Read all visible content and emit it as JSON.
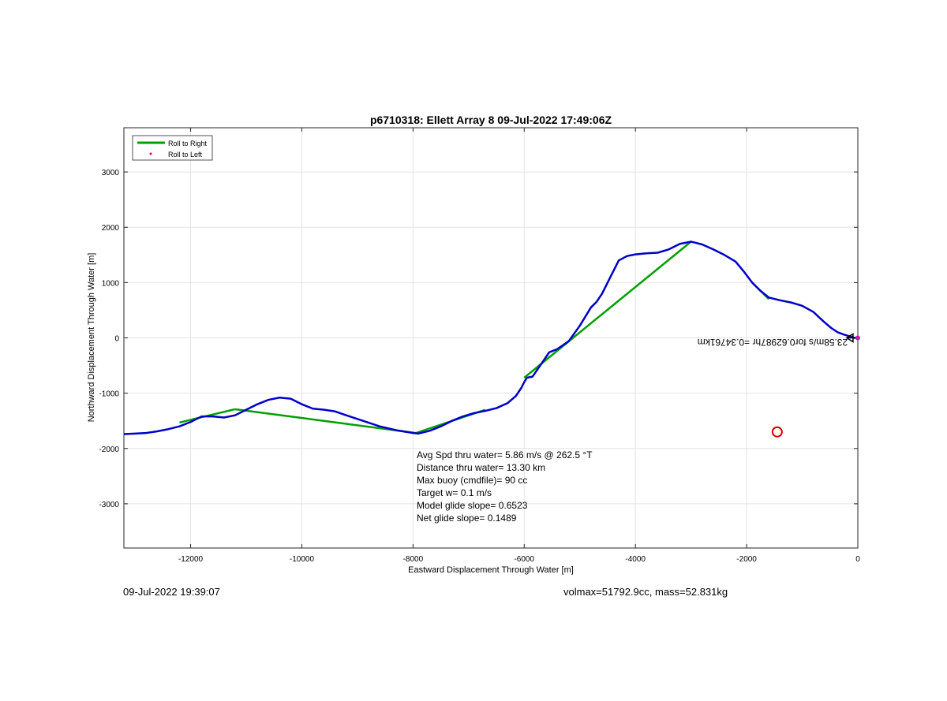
{
  "chart_data": {
    "type": "line",
    "title": "p6710318: Ellett Array 8 09-Jul-2022 17:49:06Z",
    "xlabel": "Eastward Displacement Through Water [m]",
    "ylabel": "Northward Displacement Through Water [m]",
    "xlim": [
      -13200,
      0
    ],
    "ylim": [
      -3800,
      3800
    ],
    "xticks": [
      -12000,
      -10000,
      -8000,
      -6000,
      -4000,
      -2000,
      0
    ],
    "yticks": [
      -3000,
      -2000,
      -1000,
      0,
      1000,
      2000,
      3000
    ],
    "grid": true,
    "legend": {
      "placement": "top-left",
      "entries": [
        {
          "label": "Roll to Right",
          "color": "#00a000",
          "style": "line"
        },
        {
          "label": "Roll to Left",
          "color": "#e0003c",
          "style": "dot"
        }
      ]
    },
    "series": [
      {
        "color": "#0000c8",
        "x": [
          0,
          -60,
          -150,
          -250,
          -360,
          -480,
          -620,
          -800,
          -1000,
          -1200,
          -1400,
          -1600,
          -1750,
          -1900,
          -2050,
          -2200,
          -2400,
          -2600,
          -2800,
          -3000,
          -3200,
          -3400,
          -3600,
          -3800,
          -4000,
          -4150,
          -4300,
          -4450,
          -4600,
          -4700,
          -4800,
          -5000,
          -5200,
          -5400,
          -5550,
          -5700,
          -5850,
          -5950,
          -6000,
          -6050,
          -6150,
          -6300,
          -6500,
          -6700,
          -6900,
          -7100,
          -7300,
          -7500,
          -7700,
          -7900,
          -8000,
          -8300,
          -8600,
          -8900,
          -9200,
          -9400,
          -9600,
          -9800,
          -10000,
          -10200,
          -10400,
          -10600,
          -10800,
          -11000,
          -11200,
          -11400,
          -11600,
          -11800,
          -12000,
          -12200,
          -12400,
          -12600,
          -12800,
          -13000,
          -13200
        ],
        "y": [
          0,
          0,
          30,
          60,
          100,
          180,
          300,
          470,
          580,
          640,
          680,
          730,
          850,
          1000,
          1200,
          1380,
          1500,
          1600,
          1690,
          1740,
          1700,
          1600,
          1540,
          1530,
          1510,
          1480,
          1400,
          1100,
          800,
          650,
          550,
          220,
          -60,
          -200,
          -260,
          -480,
          -700,
          -720,
          -800,
          -900,
          -1050,
          -1180,
          -1270,
          -1320,
          -1360,
          -1420,
          -1500,
          -1600,
          -1680,
          -1730,
          -1720,
          -1670,
          -1600,
          -1500,
          -1400,
          -1330,
          -1300,
          -1280,
          -1200,
          -1100,
          -1080,
          -1120,
          -1200,
          -1300,
          -1400,
          -1440,
          -1420,
          -1420,
          -1520,
          -1600,
          -1650,
          -1690,
          -1720,
          -1730,
          -1740
        ]
      },
      {
        "name": "Roll to Right",
        "color": "#00a000",
        "x": [
          -1600,
          -1900,
          -2050
        ],
        "y": [
          700,
          1000,
          1200
        ],
        "segments": [
          {
            "x": [
              -11200,
              -12200
            ],
            "y": [
              -1290,
              -1530
            ]
          },
          {
            "x": [
              -11200,
              -7950
            ],
            "y": [
              -1290,
              -1720
            ]
          },
          {
            "x": [
              -7950,
              -6700
            ],
            "y": [
              -1720,
              -1300
            ]
          },
          {
            "x": [
              -6000,
              -3000
            ],
            "y": [
              -720,
              1740
            ]
          },
          {
            "x": [
              -1600,
              -1900
            ],
            "y": [
              700,
              1000
            ]
          }
        ]
      }
    ],
    "markers": [
      {
        "shape": "circle",
        "color": "#d40000",
        "x": -1450,
        "y": -1700
      },
      {
        "shape": "arrow",
        "color": "#000000",
        "x": -200,
        "y": 0
      }
    ],
    "annotations": {
      "mirrored_label": "23.58m/s for0.62987hr =0.34761km",
      "stats": [
        "Avg Spd thru water=  5.86 m/s @ 262.5 °T",
        "Distance thru water= 13.30 km",
        "Max buoy (cmdfile)= 90 cc",
        "Target w= 0.1 m/s",
        "Model glide slope= 0.6523",
        "Net glide slope= 0.1489"
      ]
    }
  },
  "footer": {
    "left": "09-Jul-2022 19:39:07",
    "right": "volmax=51792.9cc, mass=52.831kg"
  }
}
